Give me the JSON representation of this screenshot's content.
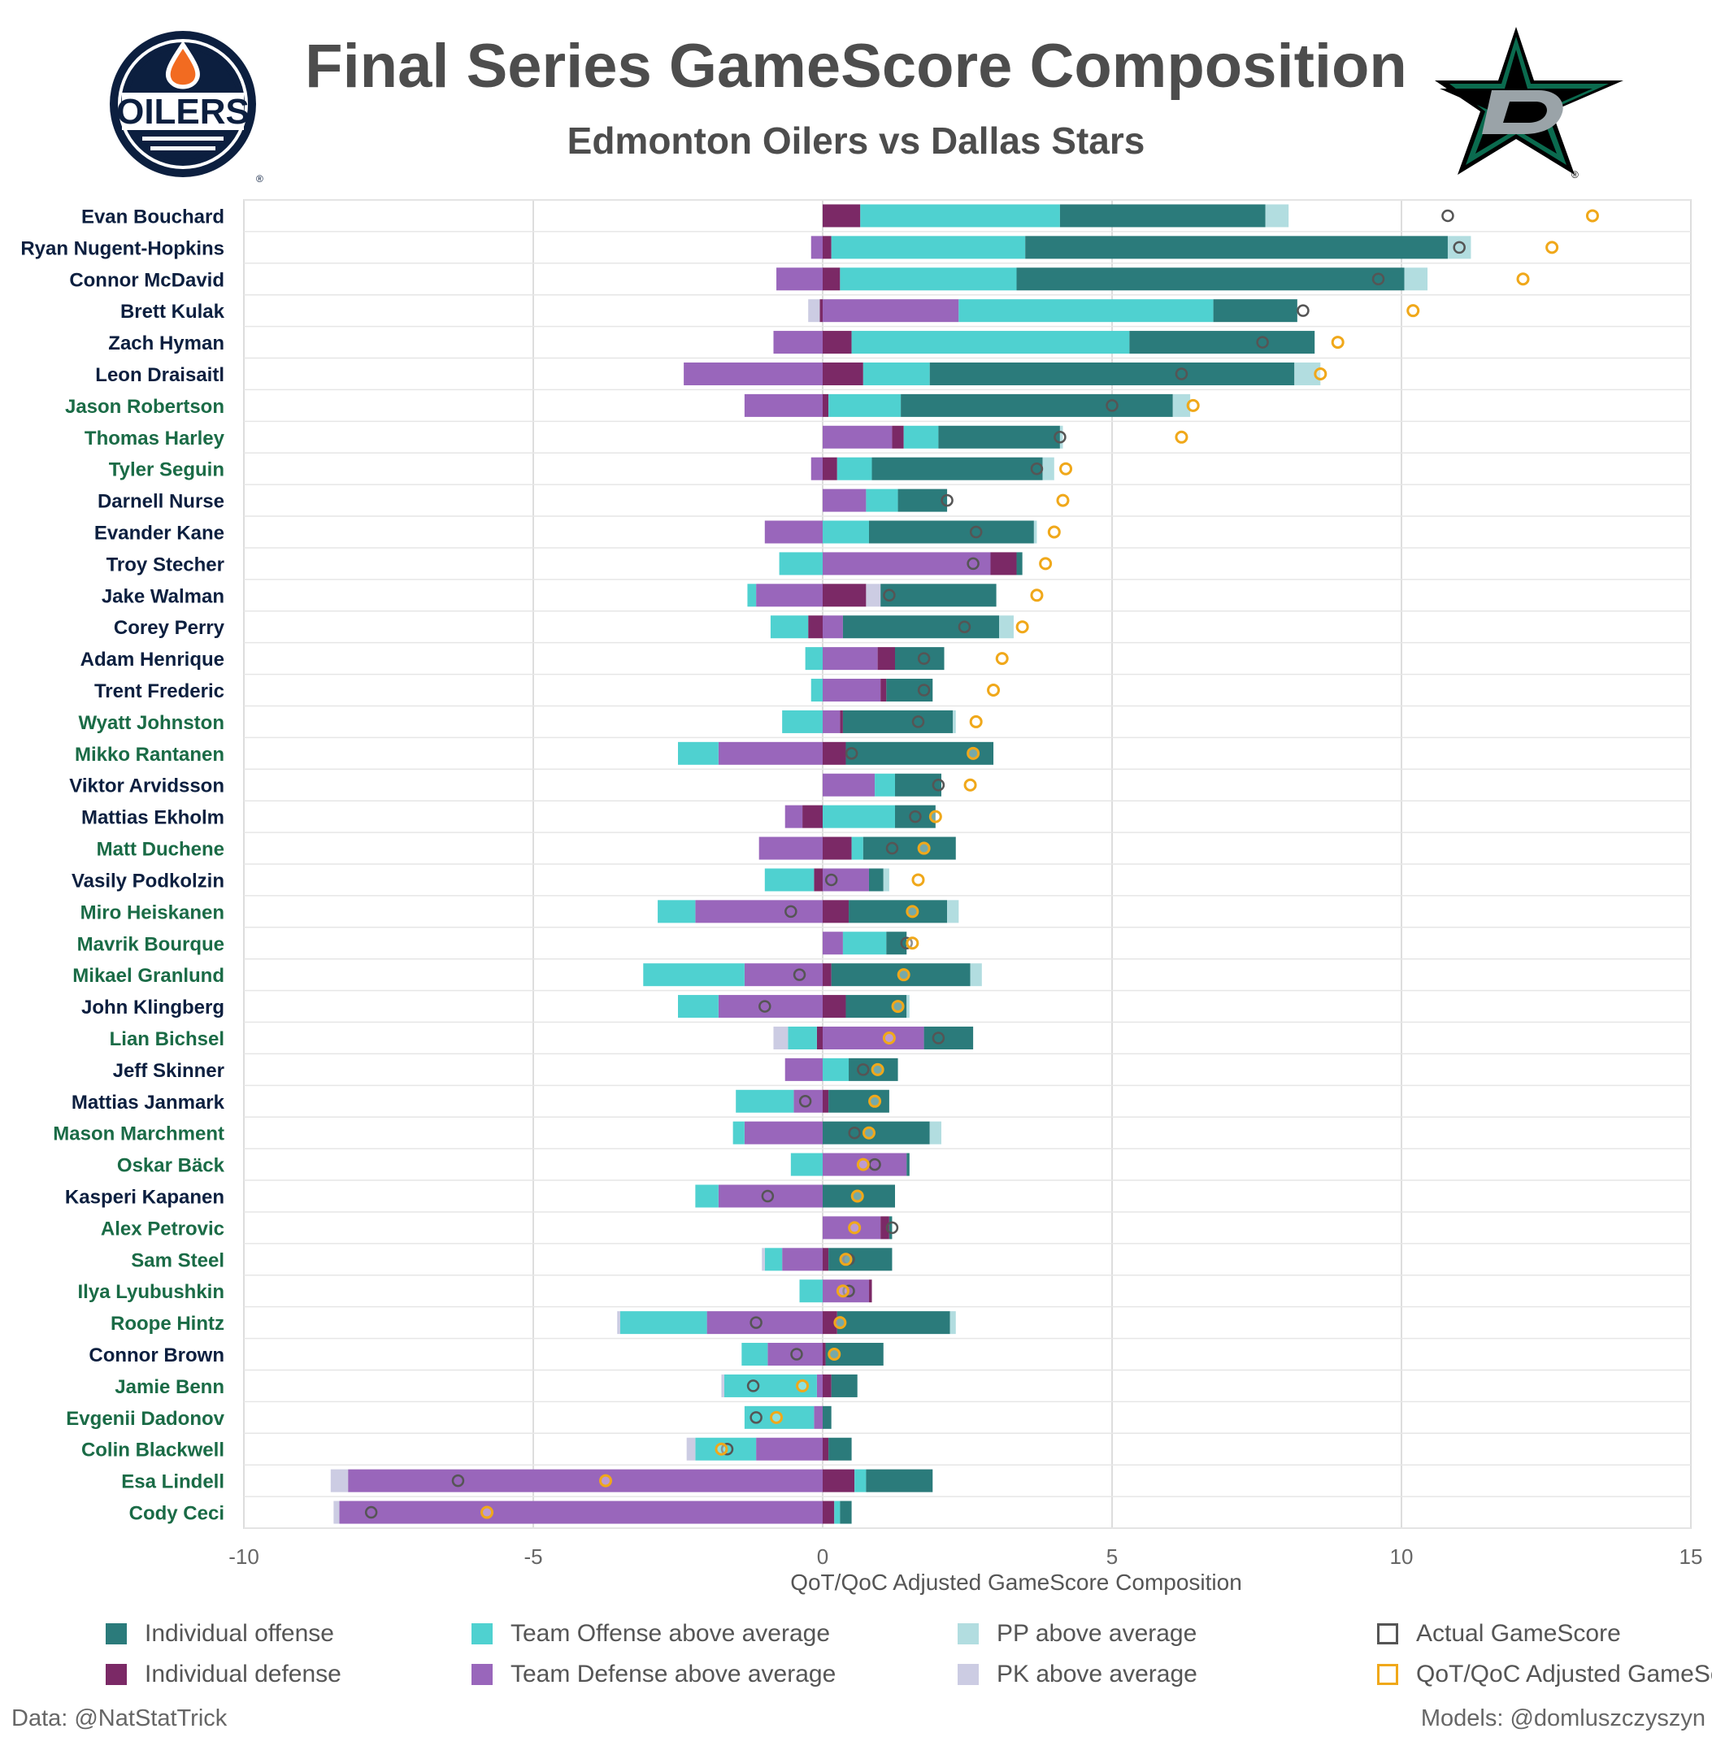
{
  "title": "Final Series GameScore Composition",
  "subtitle": "Edmonton Oilers vs Dallas Stars",
  "logos": {
    "left": {
      "team": "Edmonton Oilers",
      "text": "OILERS",
      "mark": "®"
    },
    "right": {
      "team": "Dallas Stars",
      "text": "D",
      "mark": "®"
    }
  },
  "colors": {
    "ind_off": "#2b7b7b",
    "team_off": "#4fd1d0",
    "pp": "#b2dde0",
    "ind_def": "#7b2966",
    "team_def": "#9966bb",
    "pk": "#cccce3",
    "actual": "#555555",
    "adjusted": "#f0a81a",
    "edm_label": "#0c1f3f",
    "dal_label": "#1a6b46",
    "grid": "#dddddd"
  },
  "legend": [
    {
      "key": "ind_off",
      "label": "Individual offense",
      "shape": "square"
    },
    {
      "key": "team_off",
      "label": "Team Offense above average",
      "shape": "square"
    },
    {
      "key": "pp",
      "label": "PP above average",
      "shape": "square"
    },
    {
      "key": "actual",
      "label": "Actual GameScore",
      "shape": "outline"
    },
    {
      "key": "ind_def",
      "label": "Individual defense",
      "shape": "square"
    },
    {
      "key": "team_def",
      "label": "Team Defense above average",
      "shape": "square"
    },
    {
      "key": "pk",
      "label": "PK above average",
      "shape": "square"
    },
    {
      "key": "adjusted",
      "label": "QoT/QoC Adjusted GameScore",
      "shape": "outline"
    }
  ],
  "footer": {
    "left": "Data: @NatStatTrick",
    "right": "Models: @domluszczyszyn"
  },
  "chart_data": {
    "type": "bar",
    "orientation": "horizontal",
    "stacked": true,
    "xlabel": "QoT/QoC Adjusted GameScore Composition",
    "xlim": [
      -10,
      15
    ],
    "xticks": [
      -10,
      -5,
      0,
      5,
      10,
      15
    ],
    "tick_labels": [
      "-10",
      "-5",
      "0",
      "5",
      "10",
      "15"
    ],
    "grid": true,
    "legend_position": "bottom",
    "players": [
      {
        "name": "Evan Bouchard",
        "team": "EDM",
        "ind_def": 0.0,
        "team_def": 2.7,
        "pk": 0.0,
        "ind_def_pos": 0.65,
        "team_off": 3.45,
        "ind_off": 3.55,
        "pp": 0.4,
        "team_off_neg": 0,
        "actual": 10.8,
        "adjusted": 13.3
      },
      {
        "name": "Ryan Nugent-Hopkins",
        "team": "EDM",
        "ind_def": 0.0,
        "team_def": -0.2,
        "pk": 0.0,
        "ind_def_pos": 0.15,
        "team_off": 3.35,
        "ind_off": 7.3,
        "pp": 0.4,
        "team_off_neg": 0,
        "actual": 11.0,
        "adjusted": 12.6
      },
      {
        "name": "Connor McDavid",
        "team": "EDM",
        "ind_def": 0.0,
        "team_def": -0.8,
        "pk": 0.0,
        "ind_def_pos": 0.3,
        "team_off": 3.05,
        "ind_off": 6.7,
        "pp": 0.4,
        "team_off_neg": 0,
        "actual": 9.6,
        "adjusted": 12.1
      },
      {
        "name": "Brett Kulak",
        "team": "EDM",
        "ind_def": -0.05,
        "team_def": 0.0,
        "pk": -0.2,
        "ind_def_pos": 0.0,
        "team_off": 4.4,
        "ind_off": 1.45,
        "pp": 0.0,
        "team_def_pos": 2.35,
        "team_off_neg": 0,
        "actual": 8.3,
        "adjusted": 10.2
      },
      {
        "name": "Zach Hyman",
        "team": "EDM",
        "ind_def": 0.0,
        "team_def": -0.85,
        "pk": 0.0,
        "ind_def_pos": 0.5,
        "team_off": 4.8,
        "ind_off": 3.2,
        "pp": 0.0,
        "team_off_neg": 0,
        "actual": 7.6,
        "adjusted": 8.9
      },
      {
        "name": "Leon Draisaitl",
        "team": "EDM",
        "ind_def": 0.0,
        "team_def": -2.4,
        "pk": 0.0,
        "ind_def_pos": 0.7,
        "team_off": 1.15,
        "ind_off": 6.3,
        "pp": 0.45,
        "team_off_neg": 0,
        "actual": 6.2,
        "adjusted": 8.6
      },
      {
        "name": "Jason Robertson",
        "team": "DAL",
        "ind_def": 0.0,
        "team_def": -1.35,
        "pk": 0.0,
        "ind_def_pos": 0.1,
        "team_off": 1.25,
        "ind_off": 4.7,
        "pp": 0.3,
        "team_off_neg": 0,
        "actual": 5.0,
        "adjusted": 6.4
      },
      {
        "name": "Thomas Harley",
        "team": "DAL",
        "ind_def": 0.0,
        "team_def": 0.0,
        "pk": 0.0,
        "ind_def_pos": 0.2,
        "team_off": 0.6,
        "ind_off": 2.1,
        "pp": 0.05,
        "team_def_pos": 1.2,
        "team_off_neg": 0,
        "actual": 4.1,
        "adjusted": 6.2
      },
      {
        "name": "Tyler Seguin",
        "team": "DAL",
        "ind_def": 0.0,
        "team_def": -0.2,
        "pk": 0.0,
        "ind_def_pos": 0.25,
        "team_off": 0.6,
        "ind_off": 2.95,
        "pp": 0.2,
        "team_off_neg": 0,
        "actual": 3.7,
        "adjusted": 4.2
      },
      {
        "name": "Darnell Nurse",
        "team": "EDM",
        "ind_def": 0.0,
        "team_def": 0.0,
        "pk": 0.0,
        "ind_def_pos": 0.0,
        "team_off": 0.55,
        "ind_off": 0.85,
        "pp": 0.0,
        "team_def_pos": 0.75,
        "team_off_neg": 0,
        "actual": 2.15,
        "adjusted": 4.15
      },
      {
        "name": "Evander Kane",
        "team": "EDM",
        "ind_def": 0.0,
        "team_def": -1.0,
        "pk": 0.0,
        "ind_def_pos": 0.0,
        "team_off": 0.8,
        "ind_off": 2.85,
        "pp": 0.05,
        "team_off_neg": 0,
        "actual": 2.65,
        "adjusted": 4.0
      },
      {
        "name": "Troy Stecher",
        "team": "EDM",
        "ind_def": 0.0,
        "team_def": 0.0,
        "pk": 0.0,
        "ind_def_pos": 0.45,
        "team_off": 0.0,
        "ind_off": 0.1,
        "pp": 0.0,
        "team_def_pos": 2.9,
        "team_off_neg": -0.75,
        "actual": 2.6,
        "adjusted": 3.85
      },
      {
        "name": "Jake Walman",
        "team": "EDM",
        "ind_def": 0.0,
        "team_def": -1.15,
        "pk": 0.0,
        "ind_def_pos": 0.75,
        "team_off": 0.0,
        "ind_off": 2.0,
        "pp": 0.0,
        "pk_pos": 0.25,
        "team_off_neg": -0.15,
        "actual": 1.15,
        "adjusted": 3.7
      },
      {
        "name": "Corey Perry",
        "team": "EDM",
        "ind_def": -0.25,
        "team_def": 0.0,
        "pk": 0.0,
        "ind_def_pos": 0.0,
        "team_off": 0.0,
        "ind_off": 2.7,
        "pp": 0.25,
        "team_def_pos": 0.35,
        "team_off_neg": -0.65,
        "actual": 2.45,
        "adjusted": 3.45
      },
      {
        "name": "Adam Henrique",
        "team": "EDM",
        "ind_def": 0.0,
        "team_def": 0.0,
        "pk": 0.0,
        "ind_def_pos": 0.3,
        "team_off": 0.0,
        "ind_off": 0.85,
        "pp": 0.0,
        "team_def_pos": 0.95,
        "team_off_neg": -0.3,
        "actual": 1.75,
        "adjusted": 3.1
      },
      {
        "name": "Trent Frederic",
        "team": "EDM",
        "ind_def": 0.0,
        "team_def": 0.0,
        "pk": 0.0,
        "ind_def_pos": 0.1,
        "team_off": 0.0,
        "ind_off": 0.8,
        "pp": 0.0,
        "team_def_pos": 1.0,
        "team_off_neg": -0.2,
        "actual": 1.75,
        "adjusted": 2.95
      },
      {
        "name": "Wyatt Johnston",
        "team": "DAL",
        "ind_def": 0.0,
        "team_def": 0.0,
        "pk": 0.0,
        "ind_def_pos": 0.05,
        "team_off": 0.0,
        "ind_off": 1.9,
        "pp": 0.05,
        "team_def_pos": 0.3,
        "team_off_neg": -0.7,
        "actual": 1.65,
        "adjusted": 2.65
      },
      {
        "name": "Mikko Rantanen",
        "team": "DAL",
        "ind_def": 0.0,
        "team_def": -1.8,
        "pk": 0.0,
        "ind_def_pos": 0.4,
        "team_off": 0.0,
        "ind_off": 2.55,
        "pp": 0.0,
        "team_off_neg": -0.7,
        "actual": 0.5,
        "adjusted": 2.6
      },
      {
        "name": "Viktor Arvidsson",
        "team": "EDM",
        "ind_def": 0.0,
        "team_def": 0.0,
        "pk": 0.0,
        "ind_def_pos": 0.0,
        "team_off": 0.35,
        "ind_off": 0.8,
        "pp": 0.0,
        "team_def_pos": 0.9,
        "team_off_neg": 0,
        "actual": 2.0,
        "adjusted": 2.55
      },
      {
        "name": "Mattias Ekholm",
        "team": "EDM",
        "ind_def": -0.35,
        "team_def": -0.3,
        "pk": 0.0,
        "ind_def_pos": 0.0,
        "team_off": 1.25,
        "ind_off": 0.7,
        "pp": 0.0,
        "team_off_neg": 0,
        "actual": 1.6,
        "adjusted": 1.95
      },
      {
        "name": "Matt Duchene",
        "team": "DAL",
        "ind_def": 0.0,
        "team_def": -1.1,
        "pk": 0.0,
        "ind_def_pos": 0.5,
        "team_off": 0.2,
        "ind_off": 1.6,
        "pp": 0.0,
        "team_off_neg": 0,
        "actual": 1.2,
        "adjusted": 1.75
      },
      {
        "name": "Vasily Podkolzin",
        "team": "EDM",
        "ind_def": -0.15,
        "team_def": 0.0,
        "pk": 0.0,
        "ind_def_pos": 0.0,
        "team_off": 0.0,
        "ind_off": 0.25,
        "pp": 0.1,
        "team_def_pos": 0.8,
        "team_off_neg": -0.85,
        "actual": 0.15,
        "adjusted": 1.65
      },
      {
        "name": "Miro Heiskanen",
        "team": "DAL",
        "ind_def": 0.0,
        "team_def": -2.2,
        "pk": 0.0,
        "ind_def_pos": 0.45,
        "team_off": 0.0,
        "ind_off": 1.7,
        "pp": 0.2,
        "team_off_neg": -0.65,
        "actual": -0.55,
        "adjusted": 1.55
      },
      {
        "name": "Mavrik Bourque",
        "team": "DAL",
        "ind_def": 0.0,
        "team_def": 0.0,
        "pk": 0.0,
        "ind_def_pos": 0.0,
        "team_off": 0.75,
        "ind_off": 0.35,
        "pp": 0.0,
        "team_def_pos": 0.35,
        "team_off_neg": 0,
        "actual": 1.45,
        "adjusted": 1.55
      },
      {
        "name": "Mikael Granlund",
        "team": "DAL",
        "ind_def": 0.0,
        "team_def": -1.35,
        "pk": 0.0,
        "ind_def_pos": 0.15,
        "team_off": 0.0,
        "ind_off": 2.4,
        "pp": 0.2,
        "team_off_neg": -1.75,
        "actual": -0.4,
        "adjusted": 1.4
      },
      {
        "name": "John Klingberg",
        "team": "EDM",
        "ind_def": 0.0,
        "team_def": -1.8,
        "pk": 0.0,
        "ind_def_pos": 0.4,
        "team_off": 0.0,
        "ind_off": 1.05,
        "pp": 0.05,
        "team_off_neg": -0.7,
        "actual": -1.0,
        "adjusted": 1.3
      },
      {
        "name": "Lian Bichsel",
        "team": "DAL",
        "ind_def": -0.1,
        "team_def": 0.0,
        "pk": -0.25,
        "ind_def_pos": 0.0,
        "team_off": 0.0,
        "ind_off": 0.85,
        "pp": 0.0,
        "team_def_pos": 1.75,
        "team_off_neg": -0.5,
        "actual": 2.0,
        "adjusted": 1.15
      },
      {
        "name": "Jeff Skinner",
        "team": "EDM",
        "ind_def": 0.0,
        "team_def": -0.65,
        "pk": 0.0,
        "ind_def_pos": 0.0,
        "team_off": 0.45,
        "ind_off": 0.85,
        "pp": 0.0,
        "team_off_neg": 0,
        "actual": 0.7,
        "adjusted": 0.95
      },
      {
        "name": "Mattias Janmark",
        "team": "EDM",
        "ind_def": 0.0,
        "team_def": -0.5,
        "pk": 0.0,
        "ind_def_pos": 0.1,
        "team_off": 0.0,
        "ind_off": 1.05,
        "pp": 0.0,
        "team_off_neg": -1.0,
        "actual": -0.3,
        "adjusted": 0.9
      },
      {
        "name": "Mason Marchment",
        "team": "DAL",
        "ind_def": 0.0,
        "team_def": -1.35,
        "pk": 0.0,
        "ind_def_pos": 0.0,
        "team_off": 0.0,
        "ind_off": 1.85,
        "pp": 0.2,
        "team_off_neg": -0.2,
        "actual": 0.55,
        "adjusted": 0.8
      },
      {
        "name": "Oskar Bäck",
        "team": "DAL",
        "ind_def": 0.0,
        "team_def": 0.0,
        "pk": 0.0,
        "ind_def_pos": 0.0,
        "team_off": 0.0,
        "ind_off": 0.05,
        "pp": 0.0,
        "team_def_pos": 1.45,
        "team_off_neg": -0.55,
        "actual": 0.9,
        "adjusted": 0.7
      },
      {
        "name": "Kasperi Kapanen",
        "team": "EDM",
        "ind_def": 0.0,
        "team_def": -1.8,
        "pk": 0.0,
        "ind_def_pos": 0.0,
        "team_off": 0.0,
        "ind_off": 1.25,
        "pp": 0.0,
        "team_off_neg": -0.4,
        "actual": -0.95,
        "adjusted": 0.6
      },
      {
        "name": "Alex Petrovic",
        "team": "DAL",
        "ind_def": 0.0,
        "team_def": 0.0,
        "pk": 0.0,
        "ind_def_pos": 0.15,
        "team_off": 0.0,
        "ind_off": 0.05,
        "pp": 0.0,
        "team_def_pos": 1.0,
        "team_off_neg": 0,
        "actual": 1.2,
        "adjusted": 0.55
      },
      {
        "name": "Sam Steel",
        "team": "DAL",
        "ind_def": 0.0,
        "team_def": -0.7,
        "pk": -0.05,
        "ind_def_pos": 0.1,
        "team_off": 0.0,
        "ind_off": 1.1,
        "pp": 0.0,
        "team_off_neg": -0.3,
        "actual": 0.45,
        "adjusted": 0.4
      },
      {
        "name": "Ilya Lyubushkin",
        "team": "DAL",
        "ind_def": 0.0,
        "team_def": 0.0,
        "pk": 0.0,
        "ind_def_pos": 0.05,
        "team_off": 0.0,
        "ind_off": 0.0,
        "pp": 0.0,
        "team_def_pos": 0.8,
        "team_off_neg": -0.4,
        "actual": 0.45,
        "adjusted": 0.35
      },
      {
        "name": "Roope Hintz",
        "team": "DAL",
        "ind_def": 0.0,
        "team_def": -2.0,
        "pk": -0.05,
        "ind_def_pos": 0.25,
        "team_off": 0.0,
        "ind_off": 1.95,
        "pp": 0.1,
        "team_off_neg": -1.5,
        "actual": -1.15,
        "adjusted": 0.3
      },
      {
        "name": "Connor Brown",
        "team": "EDM",
        "ind_def": 0.0,
        "team_def": -0.95,
        "pk": 0.0,
        "ind_def_pos": 0.05,
        "team_off": 0.0,
        "ind_off": 1.0,
        "pp": 0.0,
        "team_off_neg": -0.45,
        "actual": -0.45,
        "adjusted": 0.2
      },
      {
        "name": "Jamie Benn",
        "team": "DAL",
        "ind_def": 0.0,
        "team_def": -0.1,
        "pk": -0.05,
        "ind_def_pos": 0.15,
        "team_off": 0.0,
        "ind_off": 0.45,
        "pp": 0.0,
        "team_off_neg": -1.6,
        "actual": -1.2,
        "adjusted": -0.35
      },
      {
        "name": "Evgenii Dadonov",
        "team": "DAL",
        "ind_def": 0.0,
        "team_def": -0.15,
        "pk": 0.0,
        "ind_def_pos": 0.0,
        "team_off": 0.0,
        "ind_off": 0.15,
        "pp": 0.0,
        "team_off_neg": -1.2,
        "actual": -1.15,
        "adjusted": -0.8
      },
      {
        "name": "Colin Blackwell",
        "team": "DAL",
        "ind_def": 0.0,
        "team_def": -1.15,
        "pk": -0.15,
        "ind_def_pos": 0.1,
        "team_off": 0.0,
        "ind_off": 0.4,
        "pp": 0.0,
        "team_off_neg": -1.05,
        "actual": -1.65,
        "adjusted": -1.75
      },
      {
        "name": "Esa Lindell",
        "team": "DAL",
        "ind_def": 0.0,
        "team_def": -8.2,
        "pk": -0.3,
        "ind_def_pos": 0.55,
        "team_off": 0.2,
        "ind_off": 1.15,
        "pp": 0.0,
        "team_off_neg": 0,
        "actual": -6.3,
        "adjusted": -3.75
      },
      {
        "name": "Cody Ceci",
        "team": "DAL",
        "ind_def": 0.0,
        "team_def": -8.35,
        "pk": -0.1,
        "ind_def_pos": 0.2,
        "team_off": 0.1,
        "ind_off": 0.2,
        "pp": 0.0,
        "team_off_neg": 0,
        "actual": -7.8,
        "adjusted": -5.8
      }
    ]
  }
}
